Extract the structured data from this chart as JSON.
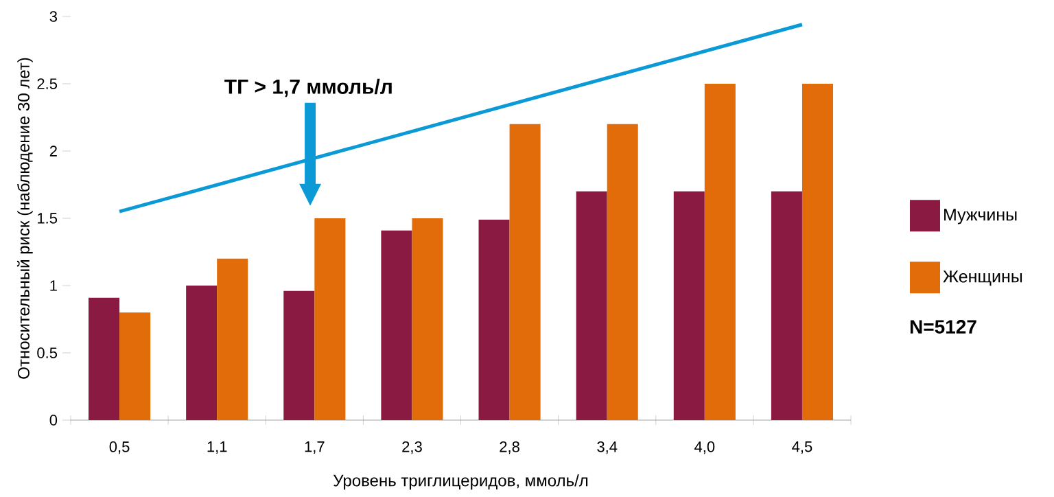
{
  "chart_data": {
    "type": "bar",
    "xlabel": "Уровень триглицеридов, ммоль/л",
    "ylabel": "Относительный риск (наблюдение 30 лет)",
    "categories": [
      "0,5",
      "1,1",
      "1,7",
      "2,3",
      "2,8",
      "3,4",
      "4,0",
      "4,5"
    ],
    "series": [
      {
        "name": "Мужчины",
        "color": "#8b1a42",
        "values": [
          0.91,
          1.0,
          0.96,
          1.41,
          1.49,
          1.7,
          1.7,
          1.7
        ]
      },
      {
        "name": "Женщины",
        "color": "#e36c0a",
        "values": [
          0.8,
          1.2,
          1.5,
          1.5,
          2.2,
          2.2,
          2.5,
          2.5
        ]
      },
      {
        "type": "line",
        "color": "#0b9ad6",
        "x": [
          "0,5",
          "4,5"
        ],
        "values": [
          1.55,
          2.94
        ]
      }
    ],
    "ylim": [
      0,
      3
    ],
    "yticks": [
      0,
      0.5,
      1,
      1.5,
      2,
      2.5,
      3
    ],
    "grid": false,
    "legend": "right",
    "annotations": [
      "ТГ > 1,7 ммоль/л",
      "N=5127"
    ]
  }
}
